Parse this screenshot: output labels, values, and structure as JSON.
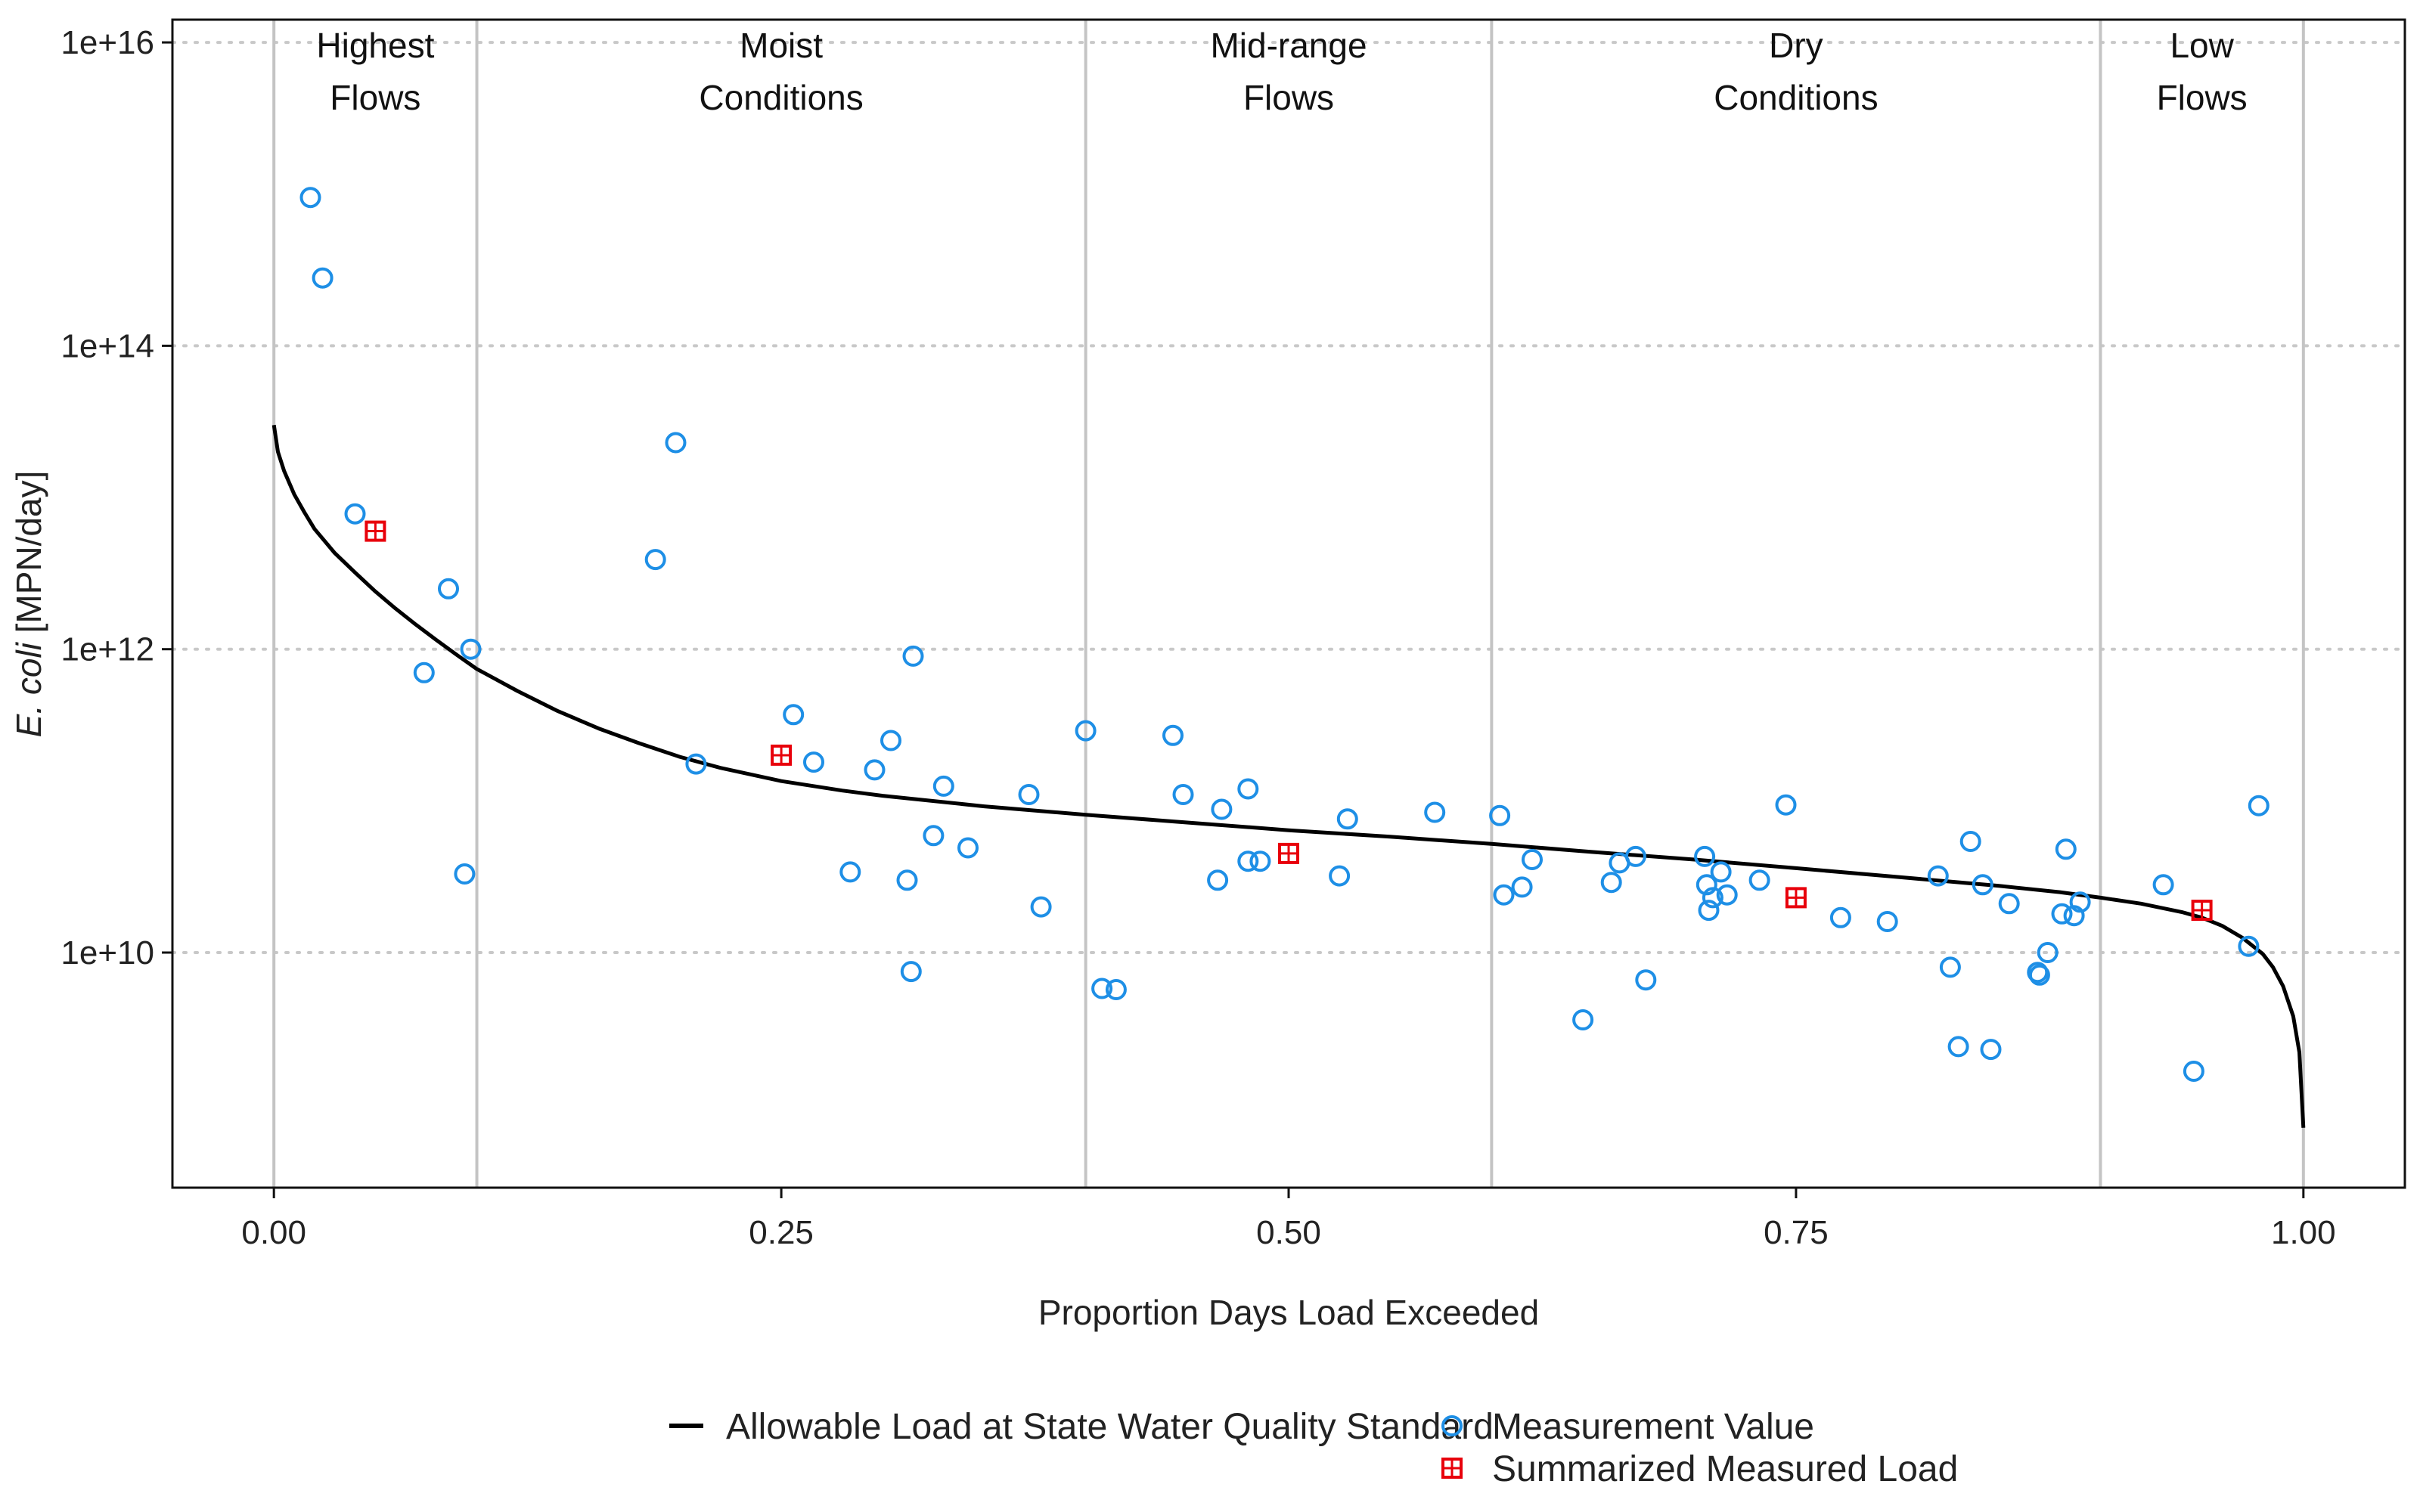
{
  "chart_data": {
    "type": "scatter",
    "title": "",
    "xlabel": "Proportion Days Load Exceeded",
    "ylabel_italic": "E. coli",
    "ylabel_rest": " [MPN/day]",
    "xlim": [
      -0.05,
      1.05
    ],
    "ylim_log10": [
      8.45,
      16.15
    ],
    "y_scale": "log",
    "x_ticks": [
      0,
      0.25,
      0.5,
      0.75,
      1
    ],
    "x_tick_labels": [
      "0.00",
      "0.25",
      "0.50",
      "0.75",
      "1.00"
    ],
    "y_ticks_log10": [
      10,
      12,
      14,
      16
    ],
    "y_tick_labels": [
      "1e+10",
      "1e+12",
      "1e+14",
      "1e+16"
    ],
    "grid": "horizontal dotted",
    "legend_position": "bottom",
    "zone_boundaries": [
      0,
      0.1,
      0.4,
      0.6,
      0.9,
      1
    ],
    "zones": [
      {
        "line1": "Highest",
        "line2": "Flows",
        "center": 0.05
      },
      {
        "line1": "Moist",
        "line2": "Conditions",
        "center": 0.25
      },
      {
        "line1": "Mid-range",
        "line2": "Flows",
        "center": 0.5
      },
      {
        "line1": "Dry",
        "line2": "Conditions",
        "center": 0.75
      },
      {
        "line1": "Low",
        "line2": "Flows",
        "center": 0.95
      }
    ],
    "series": [
      {
        "name": "Allowable Load at State Water Quality Standard",
        "kind": "line",
        "color": "#000000",
        "points": [
          [
            0,
            30000000000000.0
          ],
          [
            0.002,
            20000000000000.0
          ],
          [
            0.005,
            15000000000000.0
          ],
          [
            0.01,
            10500000000000.0
          ],
          [
            0.015,
            8000000000000.0
          ],
          [
            0.02,
            6200000000000.0
          ],
          [
            0.03,
            4300000000000.0
          ],
          [
            0.04,
            3200000000000.0
          ],
          [
            0.05,
            2400000000000.0
          ],
          [
            0.06,
            1850000000000.0
          ],
          [
            0.07,
            1450000000000.0
          ],
          [
            0.08,
            1150000000000.0
          ],
          [
            0.09,
            920000000000.0
          ],
          [
            0.1,
            740000000000.0
          ],
          [
            0.12,
            530000000000.0
          ],
          [
            0.14,
            390000000000.0
          ],
          [
            0.16,
            300000000000.0
          ],
          [
            0.18,
            240000000000.0
          ],
          [
            0.2,
            195000000000.0
          ],
          [
            0.22,
            165000000000.0
          ],
          [
            0.25,
            135000000000.0
          ],
          [
            0.28,
            117000000000.0
          ],
          [
            0.3,
            108000000000.0
          ],
          [
            0.35,
            92000000000.0
          ],
          [
            0.4,
            81000000000.0
          ],
          [
            0.45,
            72000000000.0
          ],
          [
            0.5,
            64000000000.0
          ],
          [
            0.55,
            58000000000.0
          ],
          [
            0.6,
            52000000000.0
          ],
          [
            0.65,
            46000000000.0
          ],
          [
            0.7,
            41000000000.0
          ],
          [
            0.75,
            36000000000.0
          ],
          [
            0.8,
            31500000000.0
          ],
          [
            0.85,
            27500000000.0
          ],
          [
            0.88,
            25000000000.0
          ],
          [
            0.9,
            23000000000.0
          ],
          [
            0.92,
            21000000000.0
          ],
          [
            0.94,
            18500000000.0
          ],
          [
            0.95,
            17000000000.0
          ],
          [
            0.96,
            15000000000.0
          ],
          [
            0.97,
            12500000000.0
          ],
          [
            0.98,
            9800000000.0
          ],
          [
            0.985,
            8000000000.0
          ],
          [
            0.99,
            6000000000.0
          ],
          [
            0.995,
            3800000000.0
          ],
          [
            0.998,
            2200000000.0
          ],
          [
            1.0,
            700000000.0
          ]
        ]
      },
      {
        "name": "Measurement Value",
        "kind": "points",
        "color": "#1e8fe6",
        "points": [
          [
            0.018,
            950000000000000.0
          ],
          [
            0.024,
            280000000000000.0
          ],
          [
            0.04,
            7800000000000.0
          ],
          [
            0.074,
            700000000000.0
          ],
          [
            0.086,
            2500000000000.0
          ],
          [
            0.094,
            33000000000.0
          ],
          [
            0.097,
            1000000000000.0
          ],
          [
            0.188,
            3900000000000.0
          ],
          [
            0.198,
            23000000000000.0
          ],
          [
            0.208,
            175000000000.0
          ],
          [
            0.256,
            370000000000.0
          ],
          [
            0.266,
            180000000000.0
          ],
          [
            0.284,
            34000000000.0
          ],
          [
            0.296,
            160000000000.0
          ],
          [
            0.304,
            250000000000.0
          ],
          [
            0.312,
            30000000000.0
          ],
          [
            0.314,
            7500000000.0
          ],
          [
            0.315,
            900000000000.0
          ],
          [
            0.325,
            59000000000.0
          ],
          [
            0.33,
            125000000000.0
          ],
          [
            0.342,
            49000000000.0
          ],
          [
            0.372,
            110000000000.0
          ],
          [
            0.378,
            20000000000.0
          ],
          [
            0.4,
            290000000000.0
          ],
          [
            0.408,
            5800000000.0
          ],
          [
            0.415,
            5700000000.0
          ],
          [
            0.443,
            270000000000.0
          ],
          [
            0.448,
            110000000000.0
          ],
          [
            0.465,
            30000000000.0
          ],
          [
            0.467,
            88000000000.0
          ],
          [
            0.48,
            120000000000.0
          ],
          [
            0.48,
            40000000000.0
          ],
          [
            0.486,
            40000000000.0
          ],
          [
            0.525,
            32000000000.0
          ],
          [
            0.529,
            76000000000.0
          ],
          [
            0.572,
            84000000000.0
          ],
          [
            0.604,
            80000000000.0
          ],
          [
            0.606,
            24000000000.0
          ],
          [
            0.615,
            27000000000.0
          ],
          [
            0.62,
            41000000000.0
          ],
          [
            0.645,
            3600000000.0
          ],
          [
            0.659,
            29000000000.0
          ],
          [
            0.663,
            39000000000.0
          ],
          [
            0.671,
            43000000000.0
          ],
          [
            0.676,
            6600000000.0
          ],
          [
            0.705,
            43000000000.0
          ],
          [
            0.706,
            28000000000.0
          ],
          [
            0.707,
            19000000000.0
          ],
          [
            0.709,
            23000000000.0
          ],
          [
            0.713,
            34000000000.0
          ],
          [
            0.716,
            24000000000.0
          ],
          [
            0.732,
            30000000000.0
          ],
          [
            0.745,
            94000000000.0
          ],
          [
            0.772,
            17000000000.0
          ],
          [
            0.795,
            16000000000.0
          ],
          [
            0.82,
            32000000000.0
          ],
          [
            0.826,
            8000000000.0
          ],
          [
            0.83,
            2400000000.0
          ],
          [
            0.836,
            54000000000.0
          ],
          [
            0.842,
            28000000000.0
          ],
          [
            0.846,
            2300000000.0
          ],
          [
            0.855,
            21000000000.0
          ],
          [
            0.869,
            7400000000.0
          ],
          [
            0.87,
            7100000000.0
          ],
          [
            0.874,
            10000000000.0
          ],
          [
            0.881,
            18000000000.0
          ],
          [
            0.883,
            48000000000.0
          ],
          [
            0.887,
            17500000000.0
          ],
          [
            0.89,
            21500000000.0
          ],
          [
            0.931,
            28000000000.0
          ],
          [
            0.946,
            1650000000.0
          ],
          [
            0.973,
            11000000000.0
          ],
          [
            0.978,
            93000000000.0
          ]
        ]
      },
      {
        "name": "Summarized Measured Load",
        "kind": "squares",
        "color": "#e8000b",
        "points": [
          [
            0.05,
            6000000000000.0
          ],
          [
            0.25,
            200000000000.0
          ],
          [
            0.5,
            45000000000.0
          ],
          [
            0.75,
            23000000000.0
          ],
          [
            0.95,
            19000000000.0
          ]
        ]
      }
    ]
  }
}
